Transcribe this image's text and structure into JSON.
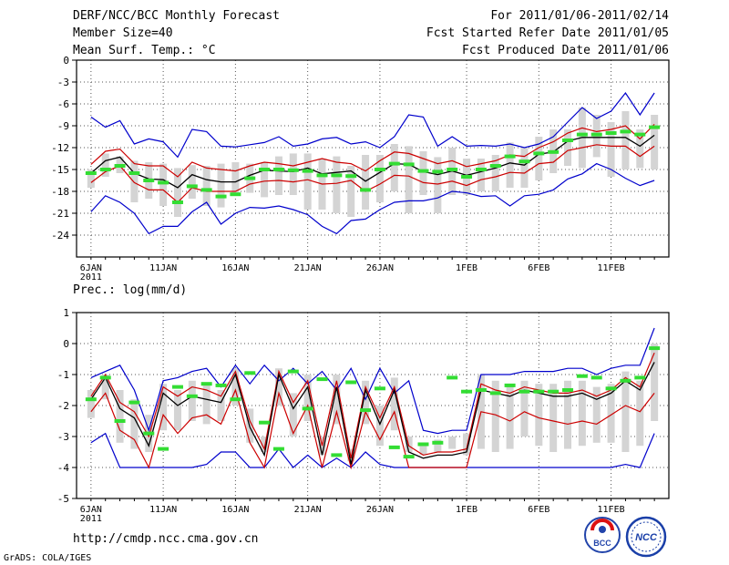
{
  "header": {
    "title": "DERF/NCC/BCC Monthly Forecast",
    "member_size": "Member Size=40",
    "variable1": "Mean Surf. Temp.: °C",
    "forecast_period": "For 2011/01/06-2011/02/14",
    "started_refer": "Fcst Started Refer Date 2011/01/05",
    "produced": "Fcst Produced Date 2011/01/06"
  },
  "footer": {
    "url": "http://cmdp.ncc.cma.gov.cn",
    "grads": "GrADS: COLA/IGES"
  },
  "logos": {
    "bcc": "BCC",
    "ncc": "NCC"
  },
  "colors": {
    "envelope": "#0000cc",
    "spread": "#cc0000",
    "mean": "#000000",
    "box": "#d4d4d4",
    "median": "#33dd33"
  },
  "chart_data": [
    {
      "type": "line",
      "title": "Mean Surf. Temp.: °C",
      "ylim": [
        -27,
        0
      ],
      "yticks": [
        0,
        -3,
        -6,
        -9,
        -12,
        -15,
        -18,
        -21,
        -24
      ],
      "ytick_labels": [
        "0",
        "-3",
        "-6",
        "-9",
        "-12",
        "-15",
        "-18",
        "-21",
        "-24"
      ],
      "x_days": [
        0,
        1,
        2,
        3,
        4,
        5,
        6,
        7,
        8,
        9,
        10,
        11,
        12,
        13,
        14,
        15,
        16,
        17,
        18,
        19,
        20,
        21,
        22,
        23,
        24,
        25,
        26,
        27,
        28,
        29,
        30,
        31,
        32,
        33,
        34,
        35,
        36,
        37,
        38,
        39
      ],
      "xlim": [
        -1,
        40
      ],
      "xticks": [
        0,
        5,
        10,
        15,
        20,
        26,
        31,
        36
      ],
      "xtick_labels": [
        "6JAN",
        "11JAN",
        "16JAN",
        "21JAN",
        "26JAN",
        "1FEB",
        "6FEB",
        "11FEB"
      ],
      "xtick_sublabel": "2011",
      "series": [
        {
          "name": "max",
          "values": [
            -7.8,
            -9.2,
            -8.3,
            -11.5,
            -10.8,
            -11.2,
            -13.3,
            -9.5,
            -9.8,
            -11.8,
            -11.9,
            -11.6,
            -11.3,
            -10.5,
            -11.8,
            -11.5,
            -10.8,
            -10.6,
            -11.5,
            -11.2,
            -12,
            -10.5,
            -7.5,
            -7.8,
            -11.8,
            -10.5,
            -11.8,
            -11.7,
            -11.8,
            -11.5,
            -12.0,
            -11.5,
            -10.5,
            -8.5,
            -6.5,
            -8,
            -7,
            -4.5,
            -7.5,
            -4.5
          ]
        },
        {
          "name": "upper",
          "values": [
            -14.3,
            -12.5,
            -12.2,
            -14.2,
            -14.5,
            -14.5,
            -16.0,
            -14.0,
            -14.8,
            -15.0,
            -15.2,
            -14.5,
            -14.0,
            -14.2,
            -14.5,
            -14.0,
            -13.5,
            -14.0,
            -14.2,
            -15.2,
            -13.8,
            -12.6,
            -12.8,
            -13.5,
            -14.2,
            -13.8,
            -14.6,
            -14.2,
            -13.8,
            -13.0,
            -13.2,
            -12.0,
            -11.2,
            -10.0,
            -9.3,
            -9.8,
            -9.5,
            -9.0,
            -10.8,
            -8.8
          ]
        },
        {
          "name": "mean",
          "values": [
            -15.5,
            -13.8,
            -13.3,
            -15.5,
            -16.3,
            -16.4,
            -17.5,
            -15.7,
            -16.4,
            -16.7,
            -16.7,
            -15.8,
            -15.1,
            -15.2,
            -15.3,
            -14.8,
            -15.6,
            -15.4,
            -15.2,
            -16.6,
            -15.4,
            -14.2,
            -14.3,
            -15.3,
            -15.7,
            -15.2,
            -15.8,
            -15.3,
            -14.8,
            -14.1,
            -14.4,
            -12.9,
            -12.6,
            -11.1,
            -10.6,
            -10.6,
            -10.6,
            -10.6,
            -11.8,
            -10.3
          ]
        },
        {
          "name": "lower",
          "values": [
            -16.8,
            -15.3,
            -14.5,
            -16.8,
            -17.8,
            -17.8,
            -19.5,
            -17.5,
            -18.0,
            -18.0,
            -18.0,
            -17.0,
            -16.6,
            -16.5,
            -16.7,
            -16.4,
            -17.0,
            -16.9,
            -16.5,
            -18.0,
            -17.0,
            -15.8,
            -15.9,
            -16.8,
            -17.0,
            -16.6,
            -17.2,
            -16.4,
            -16.0,
            -15.4,
            -15.5,
            -14.2,
            -14.0,
            -12.4,
            -12.0,
            -11.6,
            -11.8,
            -11.8,
            -13.2,
            -11.8
          ]
        },
        {
          "name": "min",
          "values": [
            -20.8,
            -18.6,
            -19.5,
            -21.0,
            -23.8,
            -22.8,
            -22.8,
            -20.8,
            -19.5,
            -22.5,
            -21.0,
            -20.2,
            -20.3,
            -20.0,
            -20.5,
            -21.2,
            -22.8,
            -23.8,
            -22.0,
            -21.8,
            -20.5,
            -19.5,
            -19.3,
            -19.3,
            -18.9,
            -18.0,
            -18.2,
            -18.7,
            -18.6,
            -20.0,
            -18.6,
            -18.4,
            -17.8,
            -16.3,
            -15.6,
            -14.2,
            -15.0,
            -16.2,
            -17.2,
            -16.5
          ]
        },
        {
          "name": "box_top",
          "values": [
            -15.0,
            -12.8,
            -13.2,
            -13.8,
            -14.0,
            -14.2,
            -14.8,
            -14.4,
            -14.5,
            -14.2,
            -14.0,
            -14.2,
            -14.0,
            -13.2,
            -12.8,
            -12.8,
            -13.5,
            -13.2,
            -14.5,
            -13.0,
            -13.0,
            -11.5,
            -11.8,
            -12.5,
            -13.3,
            -12.0,
            -13.5,
            -13.5,
            -13.0,
            -11.3,
            -12.0,
            -10.5,
            -9.5,
            -9.5,
            -6.5,
            -7.5,
            -8.5,
            -7.0,
            -9.5,
            -7.5
          ]
        },
        {
          "name": "box_bottom",
          "values": [
            -17.5,
            -16.0,
            -15.5,
            -19.5,
            -19.0,
            -20.0,
            -21.5,
            -19.0,
            -20.0,
            -20.2,
            -18.5,
            -18.2,
            -18.8,
            -18.5,
            -18.5,
            -20.5,
            -20.5,
            -21.0,
            -21.5,
            -20.5,
            -19.5,
            -18.0,
            -21.0,
            -18.5,
            -21.0,
            -18.5,
            -18.5,
            -18.0,
            -18.0,
            -17.5,
            -17.5,
            -16.5,
            -15.5,
            -14.5,
            -14.8,
            -13.3,
            -16.0,
            -15.0,
            -14.8,
            -15.0
          ]
        },
        {
          "name": "median",
          "values": [
            -15.5,
            -15.0,
            -14.5,
            -15.5,
            -16.5,
            -16.8,
            -19.5,
            -17.3,
            -17.8,
            -18.7,
            -18.4,
            -16.2,
            -15.0,
            -15.0,
            -15.1,
            -15.2,
            -15.8,
            -15.8,
            -15.9,
            -17.8,
            -15.0,
            -14.2,
            -14.3,
            -15.2,
            -15.3,
            -15.0,
            -16.0,
            -15.0,
            -14.5,
            -13.2,
            -13.9,
            -12.8,
            -12.6,
            -11.0,
            -10.2,
            -10.2,
            -10.0,
            -9.8,
            -10.2,
            -9.2
          ]
        }
      ]
    },
    {
      "type": "line",
      "title": "Prec.: log(mm/d)",
      "ylim": [
        -5,
        1
      ],
      "yticks": [
        1,
        0,
        -1,
        -2,
        -3,
        -4,
        -5
      ],
      "ytick_labels": [
        "1",
        "0",
        "-1",
        "-2",
        "-3",
        "-4",
        "-5"
      ],
      "x_days": [
        0,
        1,
        2,
        3,
        4,
        5,
        6,
        7,
        8,
        9,
        10,
        11,
        12,
        13,
        14,
        15,
        16,
        17,
        18,
        19,
        20,
        21,
        22,
        23,
        24,
        25,
        26,
        27,
        28,
        29,
        30,
        31,
        32,
        33,
        34,
        35,
        36,
        37,
        38,
        39
      ],
      "xlim": [
        -1,
        40
      ],
      "xticks": [
        0,
        5,
        10,
        15,
        20,
        26,
        31,
        36
      ],
      "xtick_labels": [
        "6JAN",
        "11JAN",
        "16JAN",
        "21JAN",
        "26JAN",
        "1FEB",
        "6FEB",
        "11FEB"
      ],
      "xtick_sublabel": "2011",
      "series": [
        {
          "name": "max",
          "values": [
            -1.1,
            -0.9,
            -0.7,
            -1.5,
            -2.8,
            -1.2,
            -1.1,
            -0.9,
            -0.8,
            -1.4,
            -0.7,
            -1.3,
            -0.7,
            -1.2,
            -0.8,
            -1.3,
            -0.9,
            -1.5,
            -0.8,
            -1.8,
            -0.8,
            -1.6,
            -1.2,
            -2.8,
            -2.9,
            -2.8,
            -2.8,
            -1.0,
            -1.0,
            -1.0,
            -0.9,
            -0.9,
            -0.9,
            -0.8,
            -0.8,
            -1.0,
            -0.8,
            -0.7,
            -0.7,
            0.5
          ]
        },
        {
          "name": "upper",
          "values": [
            -1.7,
            -1.0,
            -1.9,
            -2.2,
            -3.0,
            -1.4,
            -1.7,
            -1.4,
            -1.5,
            -1.7,
            -0.9,
            -2.5,
            -3.4,
            -0.9,
            -1.9,
            -1.2,
            -3.3,
            -1.2,
            -3.7,
            -1.4,
            -2.4,
            -1.4,
            -3.3,
            -3.6,
            -3.5,
            -3.5,
            -3.4,
            -1.3,
            -1.5,
            -1.6,
            -1.4,
            -1.5,
            -1.6,
            -1.6,
            -1.5,
            -1.7,
            -1.5,
            -1.1,
            -1.4,
            -0.3
          ]
        },
        {
          "name": "mean",
          "values": [
            -1.8,
            -1.1,
            -2.1,
            -2.4,
            -3.3,
            -1.6,
            -2.0,
            -1.7,
            -1.8,
            -1.9,
            -1.0,
            -2.7,
            -3.6,
            -1.0,
            -2.1,
            -1.4,
            -3.6,
            -1.4,
            -3.9,
            -1.5,
            -2.6,
            -1.5,
            -3.5,
            -3.7,
            -3.6,
            -3.6,
            -3.5,
            -1.5,
            -1.6,
            -1.7,
            -1.5,
            -1.6,
            -1.7,
            -1.7,
            -1.6,
            -1.8,
            -1.6,
            -1.2,
            -1.5,
            -0.6
          ]
        },
        {
          "name": "lower",
          "values": [
            -2.2,
            -1.6,
            -2.8,
            -3.1,
            -4.0,
            -2.3,
            -2.9,
            -2.4,
            -2.3,
            -2.6,
            -1.5,
            -3.2,
            -4.0,
            -1.6,
            -2.9,
            -2.0,
            -4.0,
            -2.2,
            -4.0,
            -2.2,
            -3.1,
            -2.2,
            -4.0,
            -4.0,
            -4.0,
            -4.0,
            -4.0,
            -2.2,
            -2.3,
            -2.5,
            -2.2,
            -2.4,
            -2.5,
            -2.6,
            -2.5,
            -2.6,
            -2.3,
            -2.0,
            -2.2,
            -1.6
          ]
        },
        {
          "name": "min",
          "values": [
            -3.2,
            -2.9,
            -4.0,
            -4.0,
            -4.0,
            -4.0,
            -4.0,
            -4.0,
            -3.9,
            -3.5,
            -3.5,
            -4.0,
            -4.0,
            -3.4,
            -4.0,
            -3.6,
            -4.0,
            -3.7,
            -4.0,
            -3.5,
            -3.9,
            -4.0,
            -4.0,
            -4.0,
            -4.0,
            -4.0,
            -4.0,
            -4.0,
            -4.0,
            -4.0,
            -4.0,
            -4.0,
            -4.0,
            -4.0,
            -4.0,
            -4.0,
            -4.0,
            -3.9,
            -4.0,
            -2.9
          ]
        },
        {
          "name": "box_top",
          "values": [
            -1.5,
            -1.0,
            -1.5,
            -1.8,
            -2.3,
            -1.3,
            -1.5,
            -1.2,
            -1.3,
            -1.5,
            -0.8,
            -2.1,
            -3.0,
            -0.8,
            -1.6,
            -1.0,
            -3.0,
            -1.0,
            -3.4,
            -1.2,
            -2.0,
            -1.1,
            -3.0,
            -3.2,
            -3.1,
            -3.0,
            -2.9,
            -1.0,
            -1.2,
            -1.4,
            -1.2,
            -1.3,
            -1.3,
            -1.2,
            -1.2,
            -1.4,
            -1.3,
            -0.9,
            -1.2,
            0.0
          ]
        },
        {
          "name": "box_bottom",
          "values": [
            -2.4,
            -1.8,
            -3.2,
            -3.4,
            -3.5,
            -2.8,
            -2.8,
            -2.5,
            -2.6,
            -2.5,
            -2.0,
            -3.2,
            -3.5,
            -2.0,
            -3.0,
            -2.5,
            -3.6,
            -2.6,
            -3.8,
            -2.6,
            -3.3,
            -2.8,
            -3.5,
            -3.6,
            -3.5,
            -3.4,
            -3.6,
            -3.4,
            -3.5,
            -3.4,
            -3.0,
            -3.3,
            -3.5,
            -3.4,
            -3.3,
            -3.2,
            -3.2,
            -3.5,
            -3.3,
            -2.5
          ]
        },
        {
          "name": "median",
          "values": [
            -1.8,
            -1.1,
            -2.5,
            -1.9,
            -2.9,
            -3.4,
            -1.4,
            -1.7,
            -1.3,
            -1.35,
            -1.8,
            -0.95,
            -2.55,
            -3.4,
            -0.9,
            -2.1,
            -1.15,
            -3.6,
            -1.25,
            -2.15,
            -1.45,
            -3.35,
            -3.65,
            -3.25,
            -3.2,
            -1.1,
            -1.55,
            -1.5,
            -1.6,
            -1.35,
            -1.55,
            -1.55,
            -1.55,
            -1.5,
            -1.05,
            -1.1,
            -1.45,
            -1.2,
            -1.1,
            -0.15
          ]
        }
      ]
    }
  ]
}
